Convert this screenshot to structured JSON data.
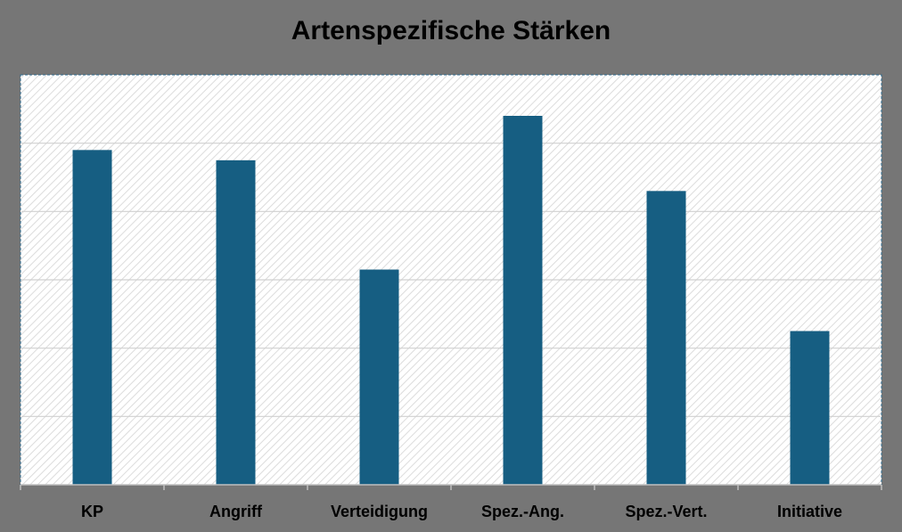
{
  "chart_data": {
    "type": "bar",
    "title": "Artenspezifische Stärken",
    "categories": [
      "KP",
      "Angriff",
      "Verteidigung",
      "Spez.-Ang.",
      "Spez.-Vert.",
      "Initiative"
    ],
    "values": [
      98,
      95,
      63,
      108,
      86,
      45
    ],
    "ylim": [
      0,
      120
    ],
    "grid": true,
    "legend": "none",
    "colors": {
      "bar": "#165E82",
      "background": "#767676",
      "plot_area": "#FFFFFF",
      "hatch": "#DCDCDC",
      "gridline": "#D0D0D0",
      "plot_border": "#2E6A8E"
    }
  }
}
